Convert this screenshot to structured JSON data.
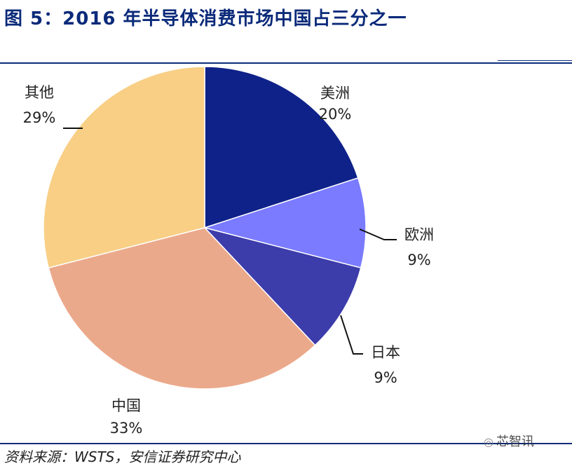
{
  "title": "图 5：2016 年半导体消费市场中国占三分之一",
  "source": "资料来源：WSTS，安信证券研究中心",
  "watermark": {
    "text": "芯智讯",
    "icon": "wechat-icon"
  },
  "chart_data": {
    "type": "pie",
    "categories": [
      "美洲",
      "欧洲",
      "日本",
      "中国",
      "其他"
    ],
    "values": [
      20,
      9,
      9,
      33,
      29
    ],
    "value_labels": [
      "20%",
      "9%",
      "9%",
      "33%",
      "29%"
    ],
    "colors": [
      "#0f2289",
      "#7a7bff",
      "#3c3cab",
      "#eba98b",
      "#f8cf85"
    ],
    "start": "12 o'clock",
    "direction": "clockwise",
    "legend": "none"
  }
}
